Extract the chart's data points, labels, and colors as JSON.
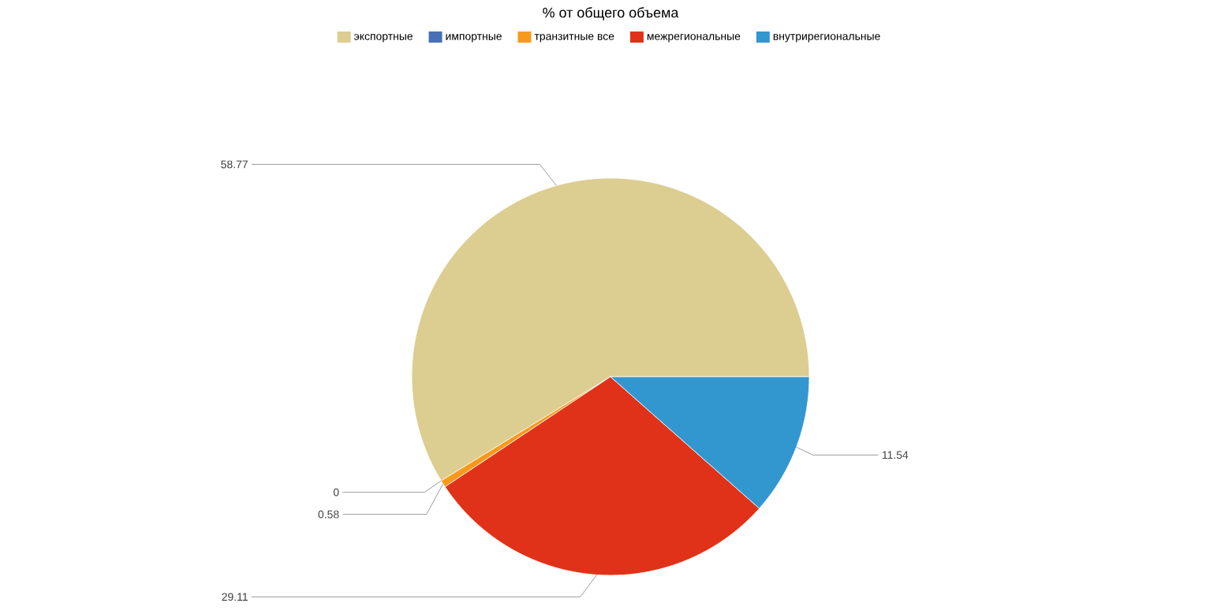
{
  "chart_data": {
    "type": "pie",
    "title": "% от общего объема",
    "categories": [
      "экспортные",
      "импортные",
      "транзитные все",
      "межрегиональные",
      "внутрирегиональные"
    ],
    "values": [
      58.77,
      0,
      0.58,
      29.11,
      11.54
    ],
    "colors": [
      "#dccd91",
      "#4a6fb5",
      "#f79a1c",
      "#e03218",
      "#3397cf"
    ],
    "value_labels": [
      "58.77",
      "0",
      "0.58",
      "29.11",
      "11.54"
    ],
    "legend": "top"
  }
}
